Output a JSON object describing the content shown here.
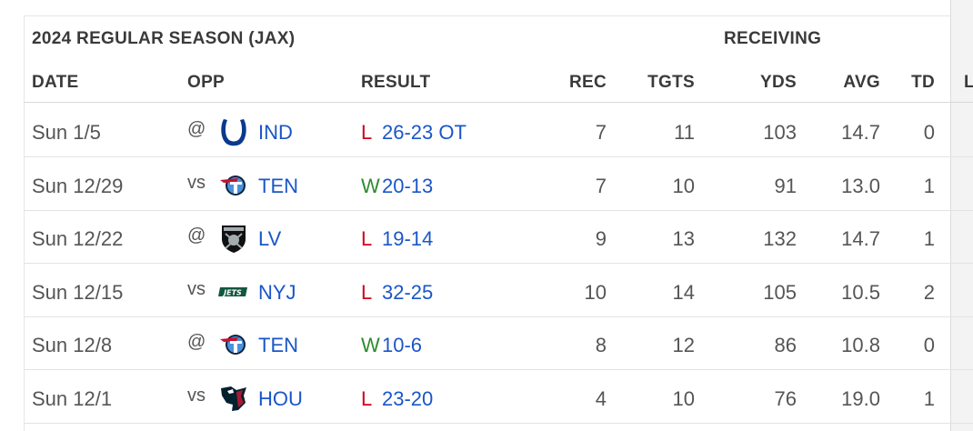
{
  "title": "2024 REGULAR SEASON (JAX)",
  "group_label": "RECEIVING",
  "columns": [
    "DATE",
    "OPP",
    "RESULT",
    "REC",
    "TGTS",
    "YDS",
    "AVG",
    "TD",
    "L"
  ],
  "colors": {
    "link": "#1a56c8",
    "loss": "#d0021b",
    "win": "#2e8b2e"
  },
  "rows": [
    {
      "date": "Sun 1/5",
      "prefix": "@",
      "logo": "colts-horseshoe-icon",
      "team": "IND",
      "wl": "L",
      "score": "26-23 OT",
      "rec": "7",
      "tgts": "11",
      "yds": "103",
      "avg": "14.7",
      "td": "0"
    },
    {
      "date": "Sun 12/29",
      "prefix": "vs",
      "logo": "titans-icon",
      "team": "TEN",
      "wl": "W",
      "score": "20-13",
      "rec": "7",
      "tgts": "10",
      "yds": "91",
      "avg": "13.0",
      "td": "1"
    },
    {
      "date": "Sun 12/22",
      "prefix": "@",
      "logo": "raiders-shield-icon",
      "team": "LV",
      "wl": "L",
      "score": "19-14",
      "rec": "9",
      "tgts": "13",
      "yds": "132",
      "avg": "14.7",
      "td": "1"
    },
    {
      "date": "Sun 12/15",
      "prefix": "vs",
      "logo": "jets-wordmark-icon",
      "team": "NYJ",
      "wl": "L",
      "score": "32-25",
      "rec": "10",
      "tgts": "14",
      "yds": "105",
      "avg": "10.5",
      "td": "2"
    },
    {
      "date": "Sun 12/8",
      "prefix": "@",
      "logo": "titans-icon",
      "team": "TEN",
      "wl": "W",
      "score": "10-6",
      "rec": "8",
      "tgts": "12",
      "yds": "86",
      "avg": "10.8",
      "td": "0"
    },
    {
      "date": "Sun 12/1",
      "prefix": "vs",
      "logo": "texans-bull-icon",
      "team": "HOU",
      "wl": "L",
      "score": "23-20",
      "rec": "4",
      "tgts": "10",
      "yds": "76",
      "avg": "19.0",
      "td": "1"
    }
  ]
}
